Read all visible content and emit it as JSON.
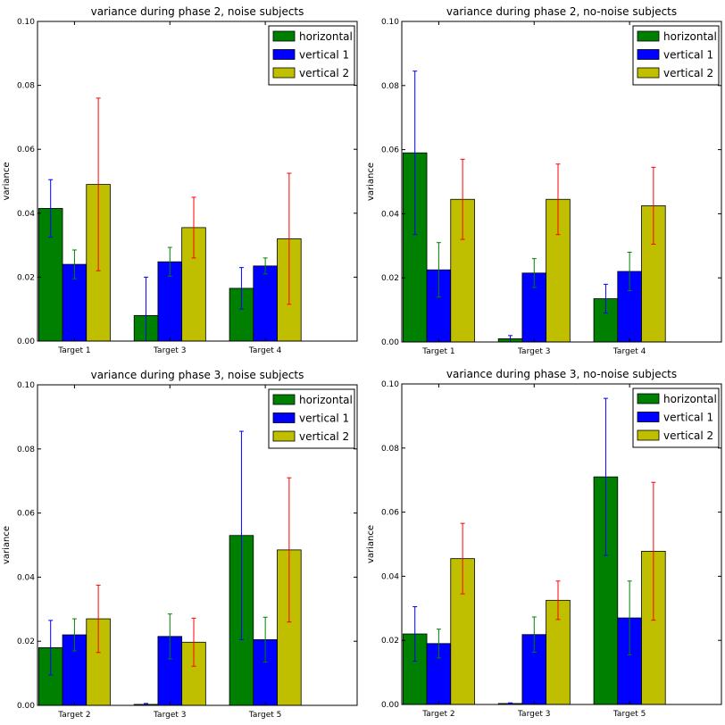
{
  "chart_data": [
    {
      "type": "bar",
      "title": "variance during phase 2, noise subjects",
      "ylabel": "variance",
      "ylim": [
        0,
        0.1
      ],
      "yticks": [
        "0.00",
        "0.02",
        "0.04",
        "0.06",
        "0.08",
        "0.10"
      ],
      "categories": [
        "Target 1",
        "Target 3",
        "Target 4"
      ],
      "legend_position": "top-right",
      "series": [
        {
          "name": "horizontal",
          "color": "#008000",
          "error_color": "#0000ff",
          "values": [
            0.0415,
            0.008,
            0.0165
          ],
          "errors": [
            0.009,
            0.012,
            0.0065
          ]
        },
        {
          "name": "vertical 1",
          "color": "#0000ff",
          "error_color": "#008000",
          "values": [
            0.024,
            0.0248,
            0.0235
          ],
          "errors": [
            0.0045,
            0.0045,
            0.0025
          ]
        },
        {
          "name": "vertical 2",
          "color": "#bfbf00",
          "error_color": "#ff0000",
          "values": [
            0.049,
            0.0355,
            0.032
          ],
          "errors": [
            0.027,
            0.0095,
            0.0205
          ]
        }
      ]
    },
    {
      "type": "bar",
      "title": "variance during phase 2, no-noise subjects",
      "ylabel": "variance",
      "ylim": [
        0,
        0.1
      ],
      "yticks": [
        "0.00",
        "0.02",
        "0.04",
        "0.06",
        "0.08",
        "0.10"
      ],
      "categories": [
        "Target 1",
        "Target 3",
        "Target 4"
      ],
      "legend_position": "top-right",
      "series": [
        {
          "name": "horizontal",
          "color": "#008000",
          "error_color": "#0000ff",
          "values": [
            0.059,
            0.001,
            0.0135
          ],
          "errors": [
            0.0255,
            0.001,
            0.0045
          ]
        },
        {
          "name": "vertical 1",
          "color": "#0000ff",
          "error_color": "#008000",
          "values": [
            0.0225,
            0.0215,
            0.022
          ],
          "errors": [
            0.0085,
            0.0045,
            0.006
          ]
        },
        {
          "name": "vertical 2",
          "color": "#bfbf00",
          "error_color": "#ff0000",
          "values": [
            0.0445,
            0.0445,
            0.0425
          ],
          "errors": [
            0.0125,
            0.011,
            0.012
          ]
        }
      ]
    },
    {
      "type": "bar",
      "title": "variance during phase 3, noise subjects",
      "ylabel": "variance",
      "ylim": [
        0,
        0.1
      ],
      "yticks": [
        "0.00",
        "0.02",
        "0.04",
        "0.06",
        "0.08",
        "0.10"
      ],
      "categories": [
        "Target 2",
        "Target 3",
        "Target 5"
      ],
      "legend_position": "top-right",
      "series": [
        {
          "name": "horizontal",
          "color": "#008000",
          "error_color": "#0000ff",
          "values": [
            0.018,
            0.0003,
            0.053
          ],
          "errors": [
            0.0085,
            0.0003,
            0.0325
          ]
        },
        {
          "name": "vertical 1",
          "color": "#0000ff",
          "error_color": "#008000",
          "values": [
            0.022,
            0.0215,
            0.0205
          ],
          "errors": [
            0.005,
            0.007,
            0.007
          ]
        },
        {
          "name": "vertical 2",
          "color": "#bfbf00",
          "error_color": "#ff0000",
          "values": [
            0.027,
            0.0197,
            0.0485
          ],
          "errors": [
            0.0105,
            0.0075,
            0.0225
          ]
        }
      ]
    },
    {
      "type": "bar",
      "title": "variance during phase 3, no-noise subjects",
      "ylabel": "variance",
      "ylim": [
        0,
        0.1
      ],
      "yticks": [
        "0.00",
        "0.02",
        "0.04",
        "0.06",
        "0.08",
        "0.10"
      ],
      "categories": [
        "Target 2",
        "Target 3",
        "Target 5"
      ],
      "legend_position": "top-right",
      "series": [
        {
          "name": "horizontal",
          "color": "#008000",
          "error_color": "#0000ff",
          "values": [
            0.022,
            0.0003,
            0.071
          ],
          "errors": [
            0.0085,
            0.0002,
            0.0245
          ]
        },
        {
          "name": "vertical 1",
          "color": "#0000ff",
          "error_color": "#008000",
          "values": [
            0.019,
            0.0218,
            0.027
          ],
          "errors": [
            0.0045,
            0.0055,
            0.0115
          ]
        },
        {
          "name": "vertical 2",
          "color": "#bfbf00",
          "error_color": "#ff0000",
          "values": [
            0.0455,
            0.0325,
            0.0478
          ],
          "errors": [
            0.011,
            0.006,
            0.0215
          ]
        }
      ]
    }
  ]
}
